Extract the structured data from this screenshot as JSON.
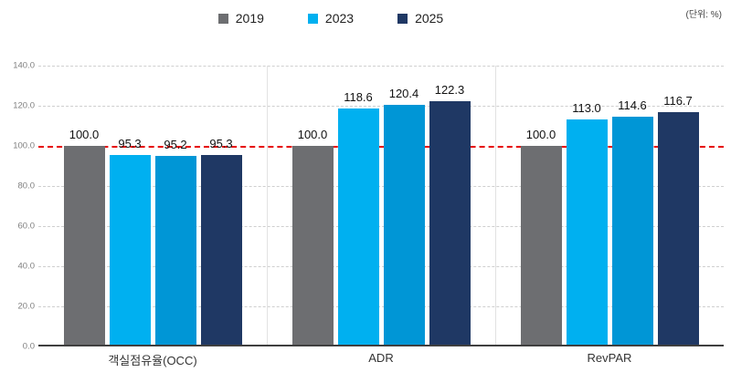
{
  "unit_label": "(단위: %)",
  "chart_data": {
    "type": "bar",
    "title": "",
    "categories": [
      "객실점유율(OCC)",
      "ADR",
      "RevPAR"
    ],
    "series": [
      {
        "name": "2019",
        "color": "#6d6e71",
        "values": [
          100.0,
          100.0,
          100.0
        ]
      },
      {
        "name": "2023",
        "color": "#00b0f0",
        "values": [
          95.3,
          118.6,
          113.0
        ]
      },
      {
        "name": "",
        "color": "#0096d6",
        "values": [
          95.2,
          120.4,
          114.6
        ]
      },
      {
        "name": "2025",
        "color": "#1f3864",
        "values": [
          95.3,
          122.3,
          116.7
        ]
      }
    ],
    "legend": [
      {
        "label": "2019",
        "color": "#6d6e71"
      },
      {
        "label": "2023",
        "color": "#00b0f0"
      },
      {
        "label": "2025",
        "color": "#1f3864"
      }
    ],
    "legend_position": "top-center",
    "ylim": [
      0,
      140
    ],
    "yticks": [
      "0.0",
      "20.0",
      "40.0",
      "60.0",
      "80.0",
      "100.0",
      "120.0",
      "140.0"
    ],
    "baseline_value": 100,
    "baseline_color": "#e60000",
    "grid": "dashed-horizontal",
    "value_labels": true,
    "value_label_format": "one-decimal"
  }
}
